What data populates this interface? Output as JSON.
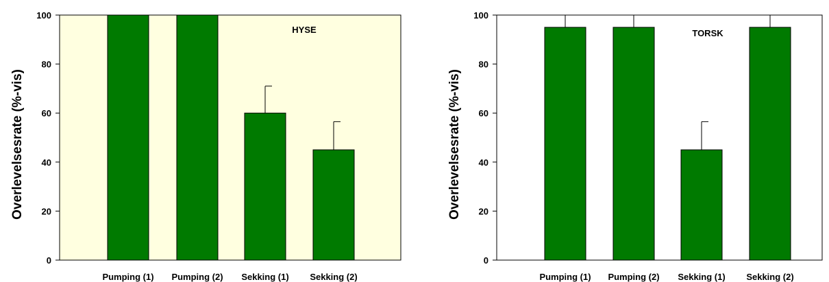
{
  "chart_data": [
    {
      "type": "bar",
      "annotation": "HYSE",
      "ylabel": "Overlevelsesrate (%-vis)",
      "xlabel": "",
      "ylim": [
        0,
        100
      ],
      "yticks": [
        0,
        20,
        40,
        60,
        80,
        100
      ],
      "categories": [
        "Pumping (1)",
        "Pumping (2)",
        "Sekking (1)",
        "Sekking (2)"
      ],
      "values": [
        100,
        100,
        60,
        45
      ],
      "errors": [
        0,
        0,
        11,
        11.5
      ],
      "plot_background": "#ffffe0",
      "bar_color": "#007a00"
    },
    {
      "type": "bar",
      "annotation": "TORSK",
      "ylabel": "Overlevelsesrate (%-vis)",
      "xlabel": "",
      "ylim": [
        0,
        100
      ],
      "yticks": [
        0,
        20,
        40,
        60,
        80,
        100
      ],
      "categories": [
        "Pumping (1)",
        "Pumping (2)",
        "Sekking (1)",
        "Sekking (2)"
      ],
      "values": [
        95,
        95,
        45,
        95
      ],
      "errors": [
        5,
        5,
        11.5,
        5
      ],
      "plot_background": "#ffffff",
      "bar_color": "#007a00"
    }
  ]
}
